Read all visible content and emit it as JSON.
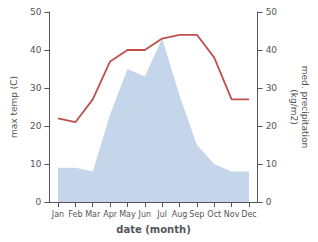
{
  "chart_data": {
    "type": "line",
    "xlabel": "date (month)",
    "ylabel": "max temp (C)",
    "y2label": "med. precipitation\n(kg/m2)",
    "categories": [
      "Jan",
      "Feb",
      "Mar",
      "Apr",
      "May",
      "Jun",
      "Jul",
      "Aug",
      "Sep",
      "Oct",
      "Nov",
      "Dec"
    ],
    "series": [
      {
        "type": "area",
        "axis": "y2",
        "color": "#c5d5ea",
        "values": [
          9,
          9,
          8,
          23,
          35,
          33,
          43,
          28,
          15,
          10,
          8,
          8
        ]
      },
      {
        "type": "line",
        "axis": "y",
        "color": "#c0504d",
        "values": [
          22,
          21,
          27,
          37,
          40,
          40,
          43,
          44,
          44,
          38,
          27,
          27
        ]
      }
    ],
    "ylim": [
      0,
      50
    ],
    "yticks": [
      0,
      10,
      20,
      30,
      40,
      50
    ],
    "y2lim": [
      0,
      50
    ],
    "y2ticks": [
      0,
      10,
      20,
      30,
      40,
      50
    ],
    "grid": false
  }
}
